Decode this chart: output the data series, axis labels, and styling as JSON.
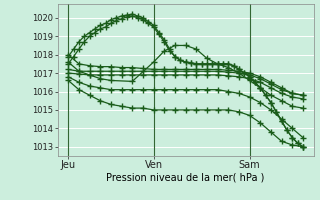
{
  "xlabel": "Pression niveau de la mer( hPa )",
  "bg_color": "#cceedd",
  "plot_bg_color": "#cceedd",
  "grid_color": "#ffffff",
  "line_color": "#1a5c1a",
  "xlim": [
    0,
    48
  ],
  "ylim": [
    1012.5,
    1020.75
  ],
  "yticks": [
    1013,
    1014,
    1015,
    1016,
    1017,
    1018,
    1019,
    1020
  ],
  "xtick_positions": [
    2,
    18,
    36
  ],
  "xtick_labels": [
    "Jeu",
    "Ven",
    "Sam"
  ],
  "vlines": [
    2,
    18,
    36
  ],
  "series": [
    {
      "x": [
        2,
        3,
        4,
        5,
        6,
        7,
        8,
        9,
        10,
        11,
        12,
        13,
        14,
        15,
        16,
        17,
        18,
        19,
        20,
        21,
        22,
        23,
        24,
        25,
        26,
        27,
        28,
        29,
        30,
        31,
        32,
        33,
        34,
        35,
        36,
        37,
        38,
        39,
        40,
        41,
        42,
        43,
        44,
        45,
        46
      ],
      "y": [
        1017.9,
        1018.3,
        1018.7,
        1019.0,
        1019.2,
        1019.4,
        1019.6,
        1019.7,
        1019.9,
        1020.0,
        1020.1,
        1020.15,
        1020.2,
        1020.1,
        1020.0,
        1019.8,
        1019.6,
        1019.2,
        1018.8,
        1018.3,
        1017.9,
        1017.7,
        1017.6,
        1017.55,
        1017.5,
        1017.5,
        1017.5,
        1017.5,
        1017.5,
        1017.5,
        1017.5,
        1017.4,
        1017.2,
        1017.0,
        1016.8,
        1016.5,
        1016.2,
        1015.8,
        1015.4,
        1014.9,
        1014.4,
        1013.9,
        1013.5,
        1013.2,
        1013.0
      ]
    },
    {
      "x": [
        2,
        3,
        4,
        5,
        6,
        7,
        8,
        9,
        10,
        11,
        12,
        13,
        14,
        15,
        16,
        17,
        18,
        19,
        20,
        21,
        22,
        23,
        24,
        25,
        26,
        27,
        28,
        29,
        30,
        31,
        32,
        33,
        34,
        35,
        36,
        37,
        38,
        39,
        40,
        41,
        42,
        43,
        44,
        45,
        46
      ],
      "y": [
        1017.5,
        1017.9,
        1018.3,
        1018.7,
        1019.0,
        1019.2,
        1019.4,
        1019.5,
        1019.7,
        1019.85,
        1019.95,
        1020.05,
        1020.1,
        1020.0,
        1019.9,
        1019.7,
        1019.5,
        1019.1,
        1018.7,
        1018.2,
        1017.9,
        1017.7,
        1017.6,
        1017.55,
        1017.5,
        1017.5,
        1017.5,
        1017.5,
        1017.5,
        1017.5,
        1017.5,
        1017.4,
        1017.2,
        1017.0,
        1016.8,
        1016.5,
        1016.2,
        1015.8,
        1015.4,
        1014.9,
        1014.4,
        1013.9,
        1013.5,
        1013.2,
        1013.0
      ]
    },
    {
      "x": [
        2,
        4,
        6,
        8,
        10,
        12,
        14,
        16,
        18,
        20,
        22,
        24,
        26,
        28,
        30,
        32,
        34,
        36,
        38,
        40,
        42,
        44,
        46
      ],
      "y": [
        1018.0,
        1017.5,
        1017.4,
        1017.35,
        1017.35,
        1017.3,
        1017.3,
        1017.25,
        1017.2,
        1017.2,
        1017.2,
        1017.2,
        1017.2,
        1017.2,
        1017.2,
        1017.15,
        1017.1,
        1017.0,
        1016.8,
        1016.5,
        1016.2,
        1015.9,
        1015.8
      ]
    },
    {
      "x": [
        2,
        4,
        6,
        8,
        10,
        12,
        14,
        16,
        18,
        20,
        22,
        24,
        26,
        28,
        30,
        32,
        34,
        36,
        38,
        40,
        42,
        44,
        46
      ],
      "y": [
        1017.2,
        1017.1,
        1017.1,
        1017.1,
        1017.1,
        1017.1,
        1017.1,
        1017.1,
        1017.1,
        1017.1,
        1017.1,
        1017.1,
        1017.1,
        1017.1,
        1017.1,
        1017.05,
        1017.0,
        1016.9,
        1016.7,
        1016.4,
        1016.1,
        1015.9,
        1015.8
      ]
    },
    {
      "x": [
        2,
        4,
        6,
        8,
        10,
        12,
        14,
        16,
        18,
        20,
        22,
        24,
        26,
        28,
        30,
        32,
        34,
        36,
        38,
        40,
        42,
        44,
        46
      ],
      "y": [
        1017.0,
        1016.95,
        1016.9,
        1016.9,
        1016.9,
        1016.9,
        1016.9,
        1016.9,
        1016.9,
        1016.9,
        1016.9,
        1016.9,
        1016.9,
        1016.9,
        1016.9,
        1016.85,
        1016.8,
        1016.7,
        1016.5,
        1016.2,
        1015.9,
        1015.7,
        1015.6
      ]
    },
    {
      "x": [
        2,
        4,
        6,
        8,
        10,
        12,
        14,
        16,
        18,
        20,
        22,
        24,
        26,
        28,
        30,
        32,
        34,
        36,
        38,
        40,
        42,
        44,
        46
      ],
      "y": [
        1016.8,
        1016.5,
        1016.3,
        1016.2,
        1016.1,
        1016.1,
        1016.1,
        1016.1,
        1016.1,
        1016.1,
        1016.1,
        1016.1,
        1016.1,
        1016.1,
        1016.1,
        1016.0,
        1015.9,
        1015.7,
        1015.4,
        1015.0,
        1014.5,
        1014.0,
        1013.5
      ]
    },
    {
      "x": [
        2,
        4,
        6,
        8,
        10,
        12,
        14,
        16,
        18,
        20,
        22,
        24,
        26,
        28,
        30,
        32,
        34,
        36,
        38,
        40,
        42,
        44,
        46
      ],
      "y": [
        1016.6,
        1016.1,
        1015.8,
        1015.5,
        1015.3,
        1015.2,
        1015.1,
        1015.1,
        1015.0,
        1015.0,
        1015.0,
        1015.0,
        1015.0,
        1015.0,
        1015.0,
        1015.0,
        1014.9,
        1014.7,
        1014.3,
        1013.8,
        1013.3,
        1013.1,
        1013.0
      ]
    },
    {
      "x": [
        2,
        4,
        6,
        8,
        10,
        14,
        18,
        20,
        22,
        24,
        26,
        28,
        30,
        32,
        34,
        36,
        38,
        40,
        42,
        44,
        46
      ],
      "y": [
        1017.6,
        1017.1,
        1016.9,
        1016.7,
        1016.6,
        1016.55,
        1017.6,
        1018.2,
        1018.5,
        1018.5,
        1018.3,
        1017.8,
        1017.5,
        1017.3,
        1017.0,
        1016.6,
        1016.2,
        1015.8,
        1015.5,
        1015.2,
        1015.1
      ]
    }
  ]
}
